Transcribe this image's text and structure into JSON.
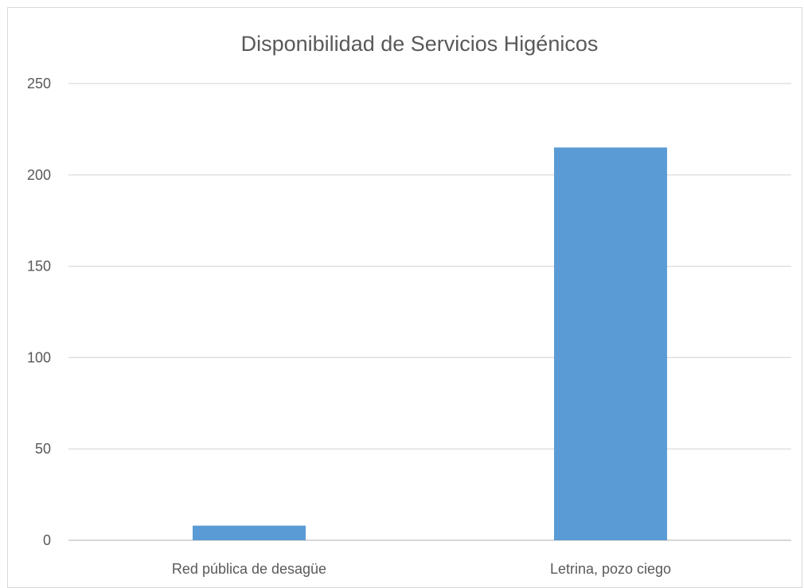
{
  "chart_data": {
    "type": "bar",
    "title": "Disponibilidad de Servicios Higénicos",
    "categories": [
      "Red pública de desagüe",
      "Letrina, pozo ciego"
    ],
    "series": [
      {
        "values": [
          8,
          215
        ],
        "color": "#5b9bd5"
      }
    ],
    "ylim": [
      0,
      250
    ],
    "yticks": [
      0,
      50,
      100,
      150,
      200,
      250
    ],
    "xlabel": "",
    "ylabel": "",
    "grid": true,
    "legend": "none"
  }
}
